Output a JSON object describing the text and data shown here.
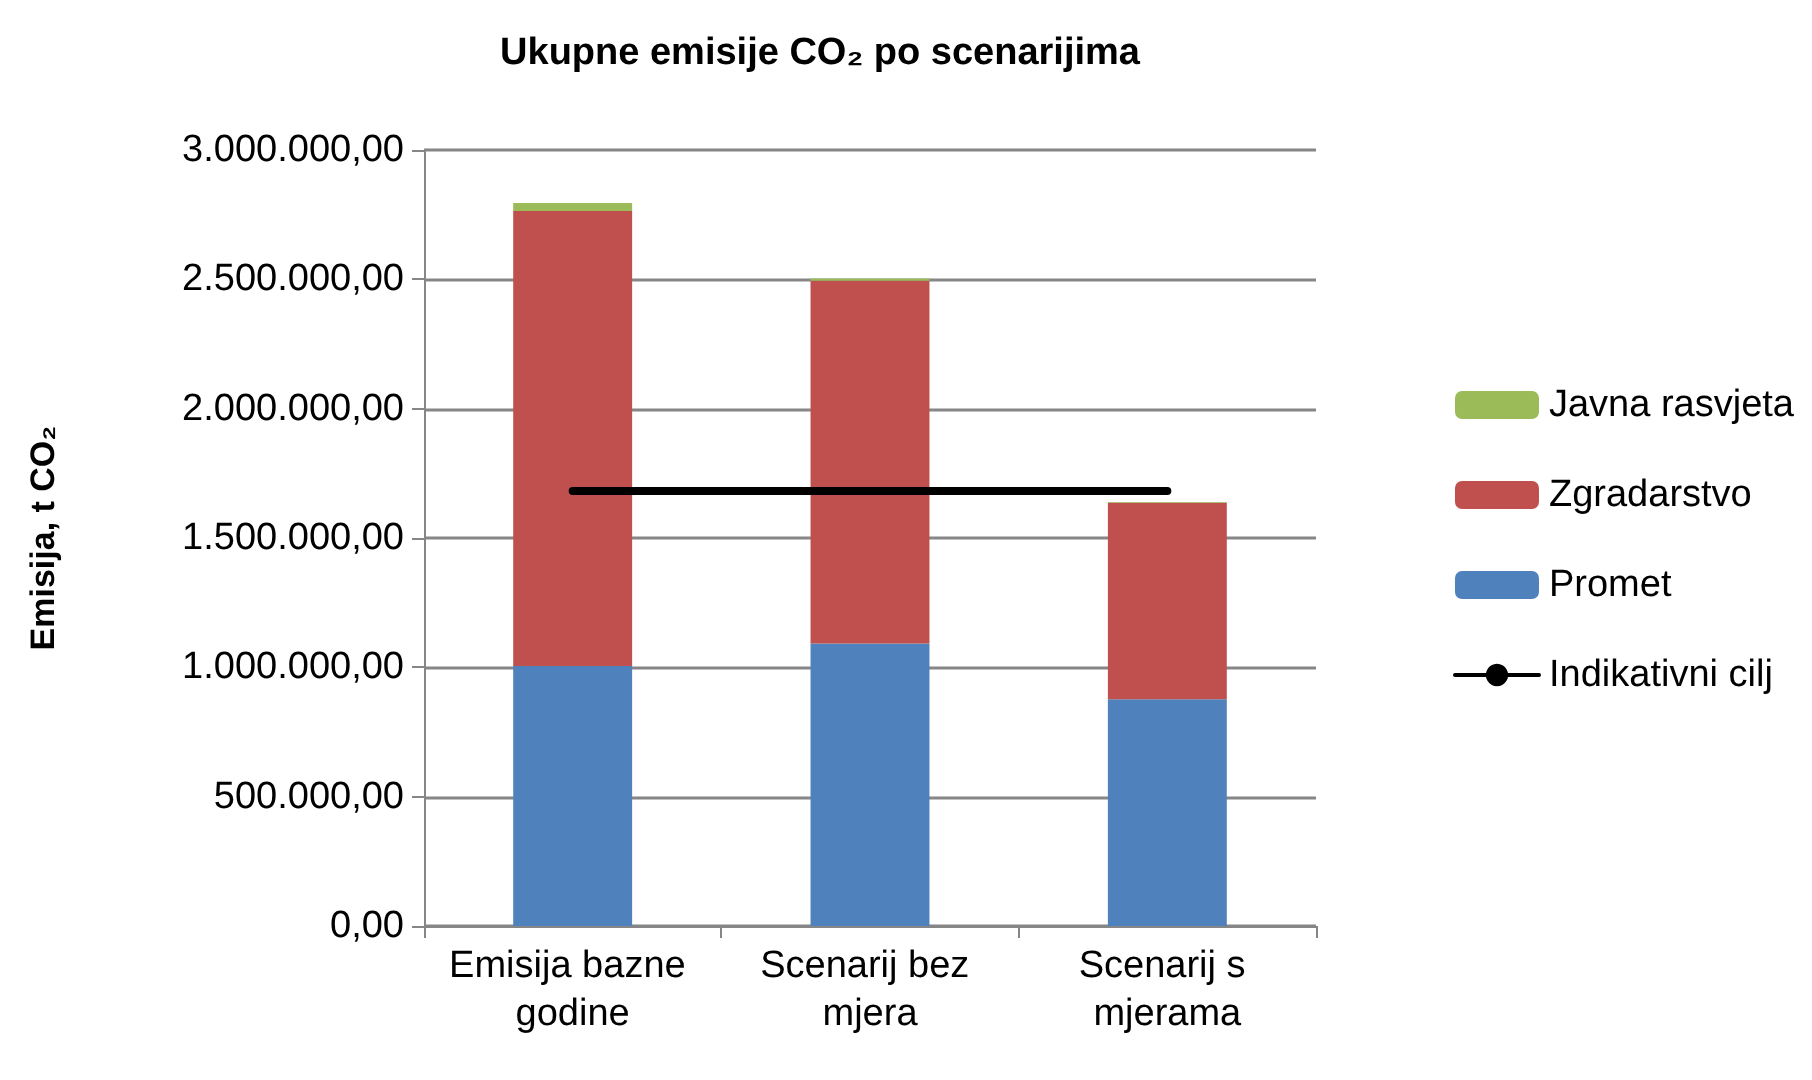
{
  "chart_data": {
    "type": "bar",
    "title": "Ukupne emisije CO₂ po scenarijima",
    "ylabel": "Emisija, t CO₂",
    "categories": [
      "Emisija bazne godine",
      "Scenarij bez mjera",
      "Scenarij s mjerama"
    ],
    "stacked": true,
    "series": [
      {
        "name": "Promet",
        "color": "#4f81bd",
        "values": [
          1005000,
          1092000,
          877000
        ]
      },
      {
        "name": "Zgradarstvo",
        "color": "#c0504d",
        "values": [
          1759000,
          1403000,
          759000
        ]
      },
      {
        "name": "Javna rasvjeta",
        "color": "#9bbb59",
        "values": [
          31000,
          8000,
          3000
        ]
      },
      {
        "name": "Indikativni cilj",
        "type": "line",
        "color": "#000000",
        "marker": "none",
        "values": [
          1682000,
          1682000,
          1682000
        ]
      }
    ],
    "ylim": [
      0,
      3000000
    ],
    "yticks": [
      {
        "value": 0,
        "label": "0,00"
      },
      {
        "value": 500000,
        "label": "500.000,00"
      },
      {
        "value": 1000000,
        "label": "1.000.000,00"
      },
      {
        "value": 1500000,
        "label": "1.500.000,00"
      },
      {
        "value": 2000000,
        "label": "2.000.000,00"
      },
      {
        "value": 2500000,
        "label": "2.500.000,00"
      },
      {
        "value": 3000000,
        "label": "3.000.000,00"
      }
    ],
    "grid": "y",
    "legend": "right"
  }
}
